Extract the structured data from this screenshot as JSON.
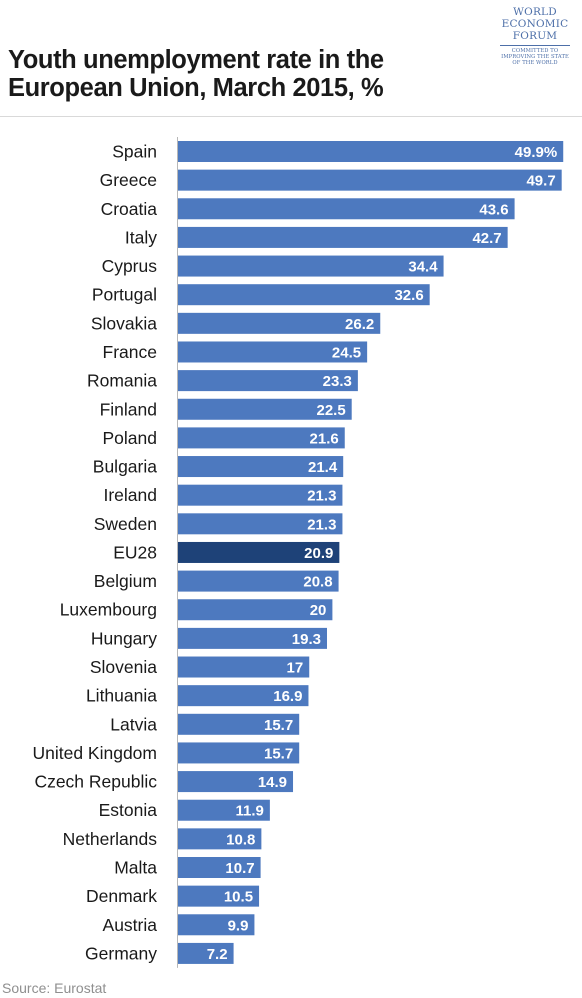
{
  "title_lines": [
    "Youth unemployment rate in the",
    "European Union, March 2015, %"
  ],
  "logo": {
    "lines": [
      "WORLD",
      "ECONOMIC",
      "FORUM"
    ],
    "tagline": [
      "COMMITTED TO",
      "IMPROVING THE STATE",
      "OF THE WORLD"
    ]
  },
  "source": "Source: Eurostat",
  "colors": {
    "bar": "#4d79bf",
    "highlight": "#1e4278",
    "axis": "#b7b7b7",
    "value_text": "#ffffff",
    "label_text": "#1a1a1a"
  },
  "chart_data": {
    "type": "bar",
    "orientation": "horizontal",
    "title": "Youth unemployment rate in the European Union, March 2015, %",
    "categories": [
      "Spain",
      "Greece",
      "Croatia",
      "Italy",
      "Cyprus",
      "Portugal",
      "Slovakia",
      "France",
      "Romania",
      "Finland",
      "Poland",
      "Bulgaria",
      "Ireland",
      "Sweden",
      "EU28",
      "Belgium",
      "Luxembourg",
      "Hungary",
      "Slovenia",
      "Lithuania",
      "Latvia",
      "United Kingdom",
      "Czech Republic",
      "Estonia",
      "Netherlands",
      "Malta",
      "Denmark",
      "Austria",
      "Germany"
    ],
    "values": [
      49.9,
      49.7,
      43.6,
      42.7,
      34.4,
      32.6,
      26.2,
      24.5,
      23.3,
      22.5,
      21.6,
      21.4,
      21.3,
      21.3,
      20.9,
      20.8,
      20,
      19.3,
      17,
      16.9,
      15.7,
      15.7,
      14.9,
      11.9,
      10.8,
      10.7,
      10.5,
      9.9,
      7.2
    ],
    "value_labels": [
      "49.9%",
      "49.7",
      "43.6",
      "42.7",
      "34.4",
      "32.6",
      "26.2",
      "24.5",
      "23.3",
      "22.5",
      "21.6",
      "21.4",
      "21.3",
      "21.3",
      "20.9",
      "20.8",
      "20",
      "19.3",
      "17",
      "16.9",
      "15.7",
      "15.7",
      "14.9",
      "11.9",
      "10.8",
      "10.7",
      "10.5",
      "9.9",
      "7.2"
    ],
    "highlight": "EU28",
    "xlim": [
      0,
      50
    ],
    "grid": false,
    "legend": "none"
  }
}
